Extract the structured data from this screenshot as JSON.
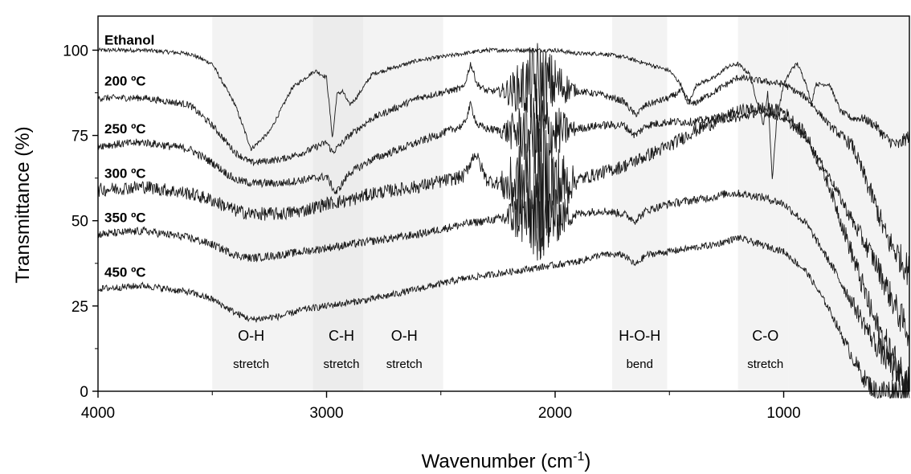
{
  "chart_data": {
    "type": "line",
    "xlabel": "Wavenumber (cm",
    "xlabel_sup": "-1",
    "xlabel_end": ")",
    "ylabel": "Transmittance (%)",
    "xlim": [
      4000,
      450
    ],
    "x_reversed": true,
    "ylim": [
      0,
      110
    ],
    "x_ticks": [
      {
        "value": 4000,
        "label": "4000"
      },
      {
        "value": 3000,
        "label": "3000"
      },
      {
        "value": 2000,
        "label": "2000"
      },
      {
        "value": 1000,
        "label": "1000"
      }
    ],
    "y_ticks": [
      {
        "value": 0,
        "label": "0"
      },
      {
        "value": 25,
        "label": "25"
      },
      {
        "value": 50,
        "label": "50"
      },
      {
        "value": 75,
        "label": "75"
      },
      {
        "value": 100,
        "label": "100"
      }
    ],
    "grid": false,
    "line_color": "#1a1a1a",
    "band_color": "#ececec",
    "band_color_light": "#f3f3f3",
    "bands": [
      {
        "x_from": 3500,
        "x_to": 3060,
        "label": "O-H",
        "sublabel": "stretch",
        "label_x": 3330
      },
      {
        "x_from": 3060,
        "x_to": 2840,
        "label": "C-H",
        "sublabel": "stretch",
        "label_x": 2935
      },
      {
        "x_from": 2840,
        "x_to": 2490,
        "label": "O-H",
        "sublabel": "stretch",
        "label_x": 2660
      },
      {
        "x_from": 1750,
        "x_to": 1510,
        "label": "H-O-H",
        "sublabel": "bend",
        "label_x": 1630
      },
      {
        "x_from": 1200,
        "x_to": 980,
        "label": "C-O",
        "sublabel": "stretch",
        "label_x": 1080
      }
    ],
    "series": [
      {
        "name": "Ethanol",
        "noise": 0.6,
        "points": [
          [
            4000,
            100
          ],
          [
            3800,
            100
          ],
          [
            3600,
            99
          ],
          [
            3500,
            96
          ],
          [
            3400,
            84
          ],
          [
            3330,
            71
          ],
          [
            3250,
            76
          ],
          [
            3150,
            89
          ],
          [
            3050,
            94
          ],
          [
            3000,
            92
          ],
          [
            2974,
            74
          ],
          [
            2955,
            87
          ],
          [
            2930,
            88
          ],
          [
            2900,
            84
          ],
          [
            2870,
            86
          ],
          [
            2800,
            93
          ],
          [
            2600,
            97
          ],
          [
            2400,
            99
          ],
          [
            2300,
            100
          ],
          [
            2200,
            100
          ],
          [
            2100,
            100
          ],
          [
            2000,
            100
          ],
          [
            1900,
            99
          ],
          [
            1800,
            99
          ],
          [
            1700,
            98
          ],
          [
            1600,
            96
          ],
          [
            1500,
            94
          ],
          [
            1450,
            90
          ],
          [
            1420,
            84
          ],
          [
            1380,
            90
          ],
          [
            1300,
            92
          ],
          [
            1250,
            95
          ],
          [
            1200,
            96
          ],
          [
            1150,
            93
          ],
          [
            1088,
            78
          ],
          [
            1070,
            88
          ],
          [
            1050,
            62
          ],
          [
            1030,
            80
          ],
          [
            1000,
            90
          ],
          [
            960,
            95
          ],
          [
            940,
            96
          ],
          [
            900,
            90
          ],
          [
            880,
            84
          ],
          [
            860,
            90
          ],
          [
            800,
            90
          ],
          [
            750,
            82
          ],
          [
            700,
            80
          ],
          [
            650,
            80
          ],
          [
            600,
            78
          ],
          [
            550,
            74
          ],
          [
            500,
            72
          ],
          [
            450,
            75
          ]
        ]
      },
      {
        "name": "200 ºC",
        "noise": 1.0,
        "points": [
          [
            4000,
            86
          ],
          [
            3800,
            86
          ],
          [
            3600,
            84
          ],
          [
            3500,
            78
          ],
          [
            3400,
            70
          ],
          [
            3330,
            67
          ],
          [
            3200,
            68
          ],
          [
            3100,
            70
          ],
          [
            3000,
            73
          ],
          [
            2974,
            70
          ],
          [
            2900,
            75
          ],
          [
            2800,
            80
          ],
          [
            2600,
            86
          ],
          [
            2400,
            89
          ],
          [
            2370,
            96
          ],
          [
            2340,
            90
          ],
          [
            2300,
            88
          ],
          [
            2200,
            88
          ],
          [
            2100,
            90
          ],
          [
            2000,
            90
          ],
          [
            1900,
            88
          ],
          [
            1800,
            87
          ],
          [
            1700,
            85
          ],
          [
            1650,
            81
          ],
          [
            1600,
            84
          ],
          [
            1500,
            86
          ],
          [
            1450,
            88
          ],
          [
            1400,
            84
          ],
          [
            1300,
            88
          ],
          [
            1200,
            92
          ],
          [
            1100,
            91
          ],
          [
            1000,
            90
          ],
          [
            950,
            88
          ],
          [
            900,
            86
          ],
          [
            850,
            82
          ],
          [
            800,
            78
          ],
          [
            700,
            72
          ],
          [
            600,
            55
          ],
          [
            550,
            45
          ],
          [
            500,
            40
          ],
          [
            450,
            35
          ]
        ]
      },
      {
        "name": "250 ºC",
        "noise": 1.2,
        "points": [
          [
            4000,
            72
          ],
          [
            3800,
            73
          ],
          [
            3600,
            71
          ],
          [
            3500,
            67
          ],
          [
            3400,
            62
          ],
          [
            3330,
            61
          ],
          [
            3200,
            61
          ],
          [
            3100,
            62
          ],
          [
            3000,
            63
          ],
          [
            2960,
            58
          ],
          [
            2900,
            64
          ],
          [
            2800,
            68
          ],
          [
            2600,
            73
          ],
          [
            2400,
            78
          ],
          [
            2370,
            84
          ],
          [
            2340,
            78
          ],
          [
            2300,
            77
          ],
          [
            2200,
            76
          ],
          [
            2100,
            76
          ],
          [
            2000,
            76
          ],
          [
            1900,
            77
          ],
          [
            1800,
            78
          ],
          [
            1700,
            78
          ],
          [
            1650,
            75
          ],
          [
            1600,
            78
          ],
          [
            1500,
            79
          ],
          [
            1400,
            79
          ],
          [
            1300,
            80
          ],
          [
            1200,
            80
          ],
          [
            1100,
            82
          ],
          [
            1000,
            80
          ],
          [
            900,
            74
          ],
          [
            800,
            63
          ],
          [
            700,
            50
          ],
          [
            600,
            38
          ],
          [
            500,
            23
          ],
          [
            450,
            17
          ]
        ]
      },
      {
        "name": "300 ºC",
        "noise": 2.0,
        "points": [
          [
            4000,
            59
          ],
          [
            3800,
            60
          ],
          [
            3600,
            58
          ],
          [
            3500,
            56
          ],
          [
            3400,
            53
          ],
          [
            3330,
            52
          ],
          [
            3200,
            52
          ],
          [
            3100,
            53
          ],
          [
            3000,
            55
          ],
          [
            2900,
            56
          ],
          [
            2800,
            58
          ],
          [
            2600,
            60
          ],
          [
            2400,
            63
          ],
          [
            2350,
            70
          ],
          [
            2300,
            62
          ],
          [
            2200,
            60
          ],
          [
            2100,
            60
          ],
          [
            2000,
            60
          ],
          [
            1900,
            62
          ],
          [
            1800,
            64
          ],
          [
            1700,
            66
          ],
          [
            1600,
            69
          ],
          [
            1500,
            72
          ],
          [
            1400,
            76
          ],
          [
            1300,
            79
          ],
          [
            1200,
            82
          ],
          [
            1100,
            83
          ],
          [
            1000,
            82
          ],
          [
            900,
            75
          ],
          [
            800,
            60
          ],
          [
            700,
            40
          ],
          [
            600,
            20
          ],
          [
            500,
            7
          ],
          [
            450,
            2
          ]
        ]
      },
      {
        "name": "350 ºC",
        "noise": 1.2,
        "points": [
          [
            4000,
            46
          ],
          [
            3800,
            47
          ],
          [
            3600,
            45
          ],
          [
            3500,
            43
          ],
          [
            3400,
            40
          ],
          [
            3330,
            39
          ],
          [
            3200,
            40
          ],
          [
            3100,
            41
          ],
          [
            3000,
            42
          ],
          [
            2900,
            43
          ],
          [
            2800,
            44
          ],
          [
            2600,
            46
          ],
          [
            2400,
            49
          ],
          [
            2300,
            50
          ],
          [
            2200,
            51
          ],
          [
            2100,
            51
          ],
          [
            2000,
            51
          ],
          [
            1900,
            52
          ],
          [
            1800,
            53
          ],
          [
            1700,
            52
          ],
          [
            1650,
            50
          ],
          [
            1600,
            53
          ],
          [
            1500,
            55
          ],
          [
            1400,
            56
          ],
          [
            1300,
            57
          ],
          [
            1250,
            58
          ],
          [
            1200,
            58
          ],
          [
            1100,
            57
          ],
          [
            1000,
            55
          ],
          [
            900,
            49
          ],
          [
            800,
            38
          ],
          [
            700,
            26
          ],
          [
            600,
            14
          ],
          [
            500,
            5
          ],
          [
            450,
            2
          ]
        ]
      },
      {
        "name": "450 ºC",
        "noise": 1.0,
        "points": [
          [
            4000,
            30
          ],
          [
            3800,
            31
          ],
          [
            3600,
            29
          ],
          [
            3500,
            27
          ],
          [
            3400,
            23
          ],
          [
            3330,
            21
          ],
          [
            3200,
            22
          ],
          [
            3100,
            24
          ],
          [
            3000,
            25
          ],
          [
            2900,
            26
          ],
          [
            2800,
            27
          ],
          [
            2600,
            30
          ],
          [
            2400,
            33
          ],
          [
            2300,
            34
          ],
          [
            2200,
            35
          ],
          [
            2100,
            36
          ],
          [
            2000,
            37
          ],
          [
            1900,
            38
          ],
          [
            1800,
            40
          ],
          [
            1700,
            40
          ],
          [
            1650,
            37
          ],
          [
            1600,
            40
          ],
          [
            1500,
            41
          ],
          [
            1400,
            42
          ],
          [
            1300,
            43
          ],
          [
            1200,
            45
          ],
          [
            1100,
            43
          ],
          [
            1000,
            41
          ],
          [
            900,
            35
          ],
          [
            800,
            24
          ],
          [
            700,
            10
          ],
          [
            650,
            4
          ],
          [
            600,
            0
          ],
          [
            550,
            0
          ],
          [
            450,
            0
          ]
        ]
      }
    ],
    "extra_noise": {
      "region": [
        2250,
        1900
      ],
      "amplitude": 18
    },
    "series_label_positions": [
      {
        "series": "Ethanol",
        "y": 103
      },
      {
        "series": "200 ºC",
        "y": 91
      },
      {
        "series": "250 ºC",
        "y": 77
      },
      {
        "series": "300 ºC",
        "y": 64
      },
      {
        "series": "350 ºC",
        "y": 51
      },
      {
        "series": "450 ºC",
        "y": 35
      }
    ]
  }
}
